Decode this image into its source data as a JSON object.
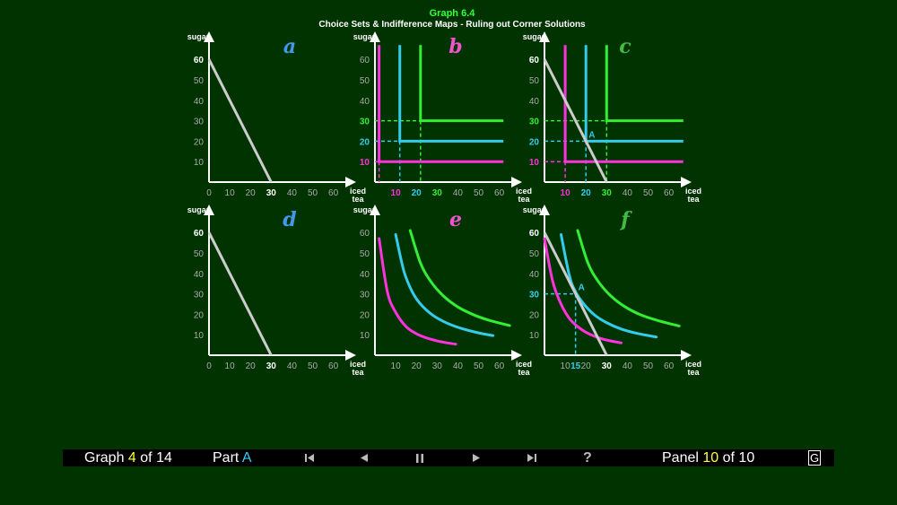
{
  "header": {
    "title": "Graph 6.4",
    "subtitle": "Choice Sets & Indifference Maps - Ruling out Corner Solutions"
  },
  "colors": {
    "background": "#003300",
    "title": "#33ff33",
    "axis": "#ffffff",
    "budget": "#cccccc",
    "magenta": "#ff33dd",
    "cyan": "#33ccee",
    "green": "#33ee33",
    "panel_letter_blue": "#4499ee",
    "panel_letter_magenta": "#ee55cc",
    "panel_letter_green": "#44bb44"
  },
  "chart_data": [
    {
      "id": "a",
      "type": "line",
      "letter": "a",
      "xlabel": "iced tea",
      "ylabel": "sugar",
      "xticks": [
        "0",
        "10",
        "20",
        "30",
        "40",
        "50",
        "60"
      ],
      "yticks": [
        "10",
        "20",
        "30",
        "40",
        "50",
        "60"
      ],
      "xlim": [
        0,
        70
      ],
      "ylim": [
        0,
        70
      ],
      "budget": {
        "x": [
          0,
          30
        ],
        "y": [
          60,
          0
        ]
      },
      "bold_x": [
        "30"
      ],
      "bold_y": [
        "60"
      ],
      "lshapes": [],
      "curves": [],
      "points": [],
      "guides": []
    },
    {
      "id": "b",
      "type": "line",
      "letter": "b",
      "xlabel": "iced tea",
      "ylabel": "sugar",
      "xticks": [
        "10",
        "20",
        "30",
        "40",
        "50",
        "60"
      ],
      "yticks": [
        "10",
        "20",
        "30",
        "40",
        "50",
        "60"
      ],
      "xlim": [
        0,
        70
      ],
      "ylim": [
        0,
        70
      ],
      "budget": null,
      "bold_x": [],
      "bold_y": [],
      "tick_colors_x": {
        "10": "magenta",
        "20": "cyan",
        "30": "green"
      },
      "tick_colors_y": {
        "10": "magenta",
        "20": "cyan",
        "30": "green"
      },
      "lshapes": [
        {
          "color": "magenta",
          "corner": [
            2,
            10
          ],
          "top": 67,
          "right": 62
        },
        {
          "color": "cyan",
          "corner": [
            12,
            20
          ],
          "top": 67,
          "right": 62
        },
        {
          "color": "green",
          "corner": [
            22,
            30
          ],
          "top": 67,
          "right": 62
        }
      ],
      "guides": [
        {
          "color": "magenta",
          "x": 2,
          "y": 10,
          "label_x": 10,
          "label_y": 10
        },
        {
          "color": "cyan",
          "x": 12,
          "y": 20,
          "label_x": 20,
          "label_y": 20
        },
        {
          "color": "green",
          "x": 22,
          "y": 30,
          "label_x": 30,
          "label_y": 30
        }
      ],
      "curves": [],
      "points": []
    },
    {
      "id": "c",
      "type": "line",
      "letter": "c",
      "xlabel": "iced tea",
      "ylabel": "sugar",
      "xticks": [
        "10",
        "20",
        "30",
        "40",
        "50",
        "60"
      ],
      "yticks": [
        "10",
        "20",
        "30",
        "40",
        "50",
        "60"
      ],
      "xlim": [
        0,
        70
      ],
      "ylim": [
        0,
        70
      ],
      "budget": {
        "x": [
          0,
          30
        ],
        "y": [
          60,
          0
        ]
      },
      "bold_x": [
        "30"
      ],
      "bold_y": [
        "60"
      ],
      "tick_colors_x": {
        "10": "magenta",
        "20": "cyan",
        "30": "green"
      },
      "tick_colors_y": {
        "10": "magenta",
        "20": "cyan",
        "30": "green"
      },
      "lshapes": [
        {
          "color": "magenta",
          "corner": [
            10,
            10
          ],
          "top": 67,
          "right": 67
        },
        {
          "color": "cyan",
          "corner": [
            20,
            20
          ],
          "top": 67,
          "right": 67
        },
        {
          "color": "green",
          "corner": [
            30,
            30
          ],
          "top": 67,
          "right": 67
        }
      ],
      "guides": [
        {
          "color": "magenta",
          "x": 10,
          "y": 10,
          "label_x": 10,
          "label_y": 10
        },
        {
          "color": "cyan",
          "x": 20,
          "y": 20,
          "label_x": 20,
          "label_y": 20
        },
        {
          "color": "green",
          "x": 30,
          "y": 30,
          "label_x": 30,
          "label_y": 30
        }
      ],
      "curves": [],
      "points": [
        {
          "label": "A",
          "x": 20,
          "y": 20,
          "color": "cyan"
        }
      ]
    },
    {
      "id": "d",
      "type": "line",
      "letter": "d",
      "xlabel": "iced tea",
      "ylabel": "sugar",
      "xticks": [
        "0",
        "10",
        "20",
        "30",
        "40",
        "50",
        "60"
      ],
      "yticks": [
        "10",
        "20",
        "30",
        "40",
        "50",
        "60"
      ],
      "xlim": [
        0,
        70
      ],
      "ylim": [
        0,
        70
      ],
      "budget": {
        "x": [
          0,
          30
        ],
        "y": [
          60,
          0
        ]
      },
      "bold_x": [
        "30"
      ],
      "bold_y": [
        "60"
      ],
      "lshapes": [],
      "curves": [],
      "points": [],
      "guides": []
    },
    {
      "id": "e",
      "type": "line",
      "letter": "e",
      "xlabel": "iced tea",
      "ylabel": "sugar",
      "xticks": [
        "10",
        "20",
        "30",
        "40",
        "50",
        "60"
      ],
      "yticks": [
        "10",
        "20",
        "30",
        "40",
        "50",
        "60"
      ],
      "xlim": [
        0,
        70
      ],
      "ylim": [
        0,
        70
      ],
      "budget": null,
      "bold_x": [],
      "bold_y": [],
      "lshapes": [],
      "curves": [
        {
          "color": "magenta",
          "x": [
            2,
            6,
            10,
            15,
            20,
            25,
            30,
            35,
            39
          ],
          "y": [
            57,
            31,
            21,
            14,
            10.5,
            8.4,
            7,
            6,
            5.4
          ]
        },
        {
          "color": "cyan",
          "x": [
            10,
            14,
            18,
            22,
            28,
            35,
            42,
            50,
            57
          ],
          "y": [
            59,
            41,
            31,
            25,
            19.5,
            15.6,
            13,
            10.9,
            9.6
          ]
        },
        {
          "color": "green",
          "x": [
            17,
            22,
            27,
            33,
            40,
            48,
            56,
            65
          ],
          "y": [
            61,
            45,
            36,
            29,
            23.6,
            19.6,
            16.8,
            14.5
          ]
        }
      ],
      "points": [],
      "guides": []
    },
    {
      "id": "f",
      "type": "line",
      "letter": "f",
      "xlabel": "iced tea",
      "ylabel": "sugar",
      "xticks": [
        "10",
        "20",
        "30",
        "40",
        "50",
        "60"
      ],
      "yticks": [
        "10",
        "20",
        "30",
        "40",
        "50",
        "60"
      ],
      "xlim": [
        0,
        70
      ],
      "ylim": [
        0,
        70
      ],
      "budget": {
        "x": [
          0,
          30
        ],
        "y": [
          60,
          0
        ]
      },
      "bold_x": [
        "30"
      ],
      "bold_y": [
        "60"
      ],
      "hidden_x": [
        "30"
      ],
      "extra_x": [
        {
          "label": "15",
          "value": 15,
          "color": "cyan"
        },
        {
          "label": "30",
          "value": 30,
          "color": "white"
        }
      ],
      "extra_y": [
        {
          "label": "30",
          "value": 30,
          "color": "cyan"
        }
      ],
      "hidden_y": [
        "30"
      ],
      "lshapes": [],
      "curves": [
        {
          "color": "magenta",
          "x": [
            0,
            4,
            8,
            12,
            16,
            20,
            25,
            30,
            37
          ],
          "y": [
            57,
            36,
            25,
            18,
            14,
            11.2,
            8.9,
            7.4,
            6
          ]
        },
        {
          "color": "cyan",
          "x": [
            8,
            12,
            15,
            19,
            24,
            30,
            37,
            45,
            54
          ],
          "y": [
            59,
            39,
            31,
            25,
            19.8,
            15.9,
            12.8,
            10.6,
            8.9
          ]
        },
        {
          "color": "green",
          "x": [
            16,
            21,
            26,
            32,
            39,
            47,
            56,
            65
          ],
          "y": [
            61,
            45,
            36,
            29,
            23.6,
            19.5,
            16.6,
            14.3
          ]
        }
      ],
      "points": [
        {
          "label": "A",
          "x": 15,
          "y": 30,
          "color": "cyan"
        }
      ],
      "guides": [
        {
          "color": "cyan",
          "x": 15,
          "y": 30,
          "label_x": null,
          "label_y": null
        }
      ]
    }
  ],
  "controls": {
    "graph_label": "Graph",
    "graph_num": "4",
    "graph_of": "of 14",
    "part_label": "Part",
    "part_value": "A",
    "help": "?",
    "panel_label": "Panel",
    "panel_num": "10",
    "panel_of": "of 10",
    "g_label": "G"
  }
}
